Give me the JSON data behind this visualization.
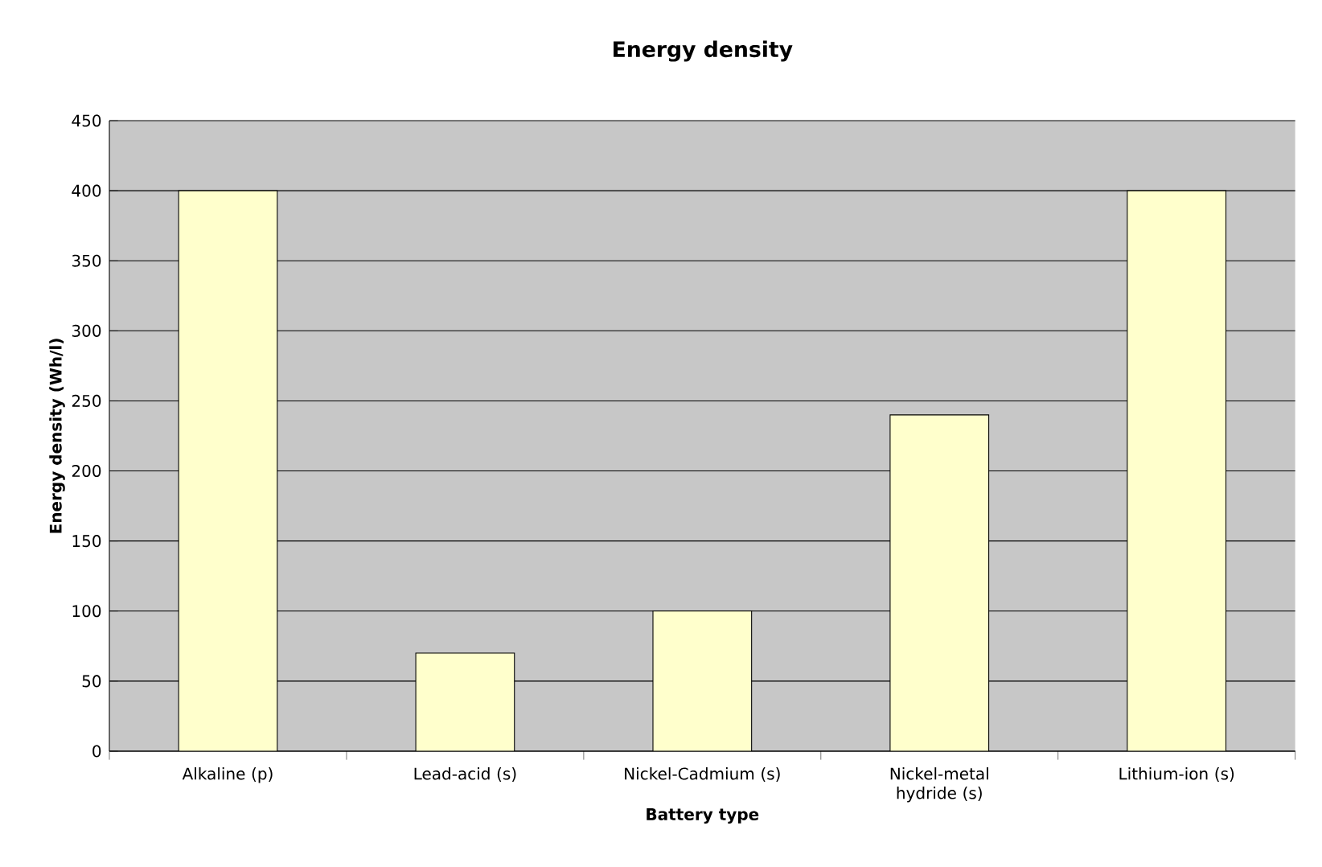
{
  "chart_data": {
    "type": "bar",
    "title": "Energy density",
    "xlabel": "Battery type",
    "ylabel": "Energy density (Wh/l)",
    "categories": [
      "Alkaline (p)",
      "Lead-acid (s)",
      "Nickel-Cadmium (s)",
      "Nickel-metal hydride (s)",
      "Lithium-ion (s)"
    ],
    "values": [
      400,
      70,
      100,
      240,
      400
    ],
    "color": "#ffffcc",
    "ylim": [
      0,
      450
    ],
    "yticks": [
      0,
      50,
      100,
      150,
      200,
      250,
      300,
      350,
      400,
      450
    ],
    "grid": "y"
  }
}
